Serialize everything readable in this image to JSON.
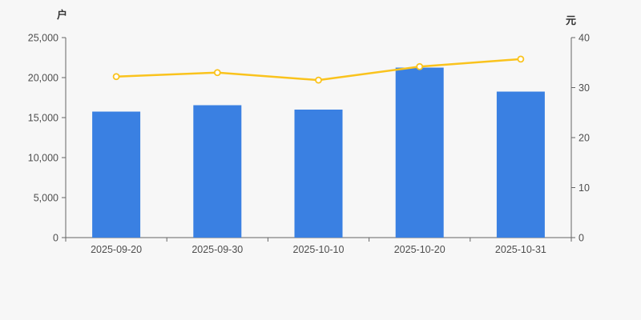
{
  "chart_data": {
    "type": "bar",
    "subtype": "bar+line-combo",
    "categories": [
      "2025-09-20",
      "2025-09-30",
      "2025-10-10",
      "2025-10-20",
      "2025-10-31"
    ],
    "series": [
      {
        "type": "bar",
        "axis": "left",
        "unit": "户",
        "values": [
          15750,
          16550,
          16000,
          21250,
          18250
        ],
        "color": "#3a80e2"
      },
      {
        "type": "line",
        "axis": "right",
        "unit": "元",
        "values": [
          32.2,
          33.0,
          31.5,
          34.2,
          35.7
        ],
        "color": "#fac31d",
        "marker": "hollow-circle"
      }
    ],
    "left_axis": {
      "label": "户",
      "min": 0,
      "max": 25000,
      "ticks": [
        "0",
        "5,000",
        "10,000",
        "15,000",
        "20,000",
        "25,000"
      ]
    },
    "right_axis": {
      "label": "元",
      "min": 0,
      "max": 40,
      "ticks": [
        "0",
        "10",
        "20",
        "30",
        "40"
      ]
    },
    "title": "",
    "legend": false,
    "grid": false,
    "background": "#f7f7f7",
    "axis_color": "#666666",
    "tick_text_color": "#4e4e4e"
  }
}
